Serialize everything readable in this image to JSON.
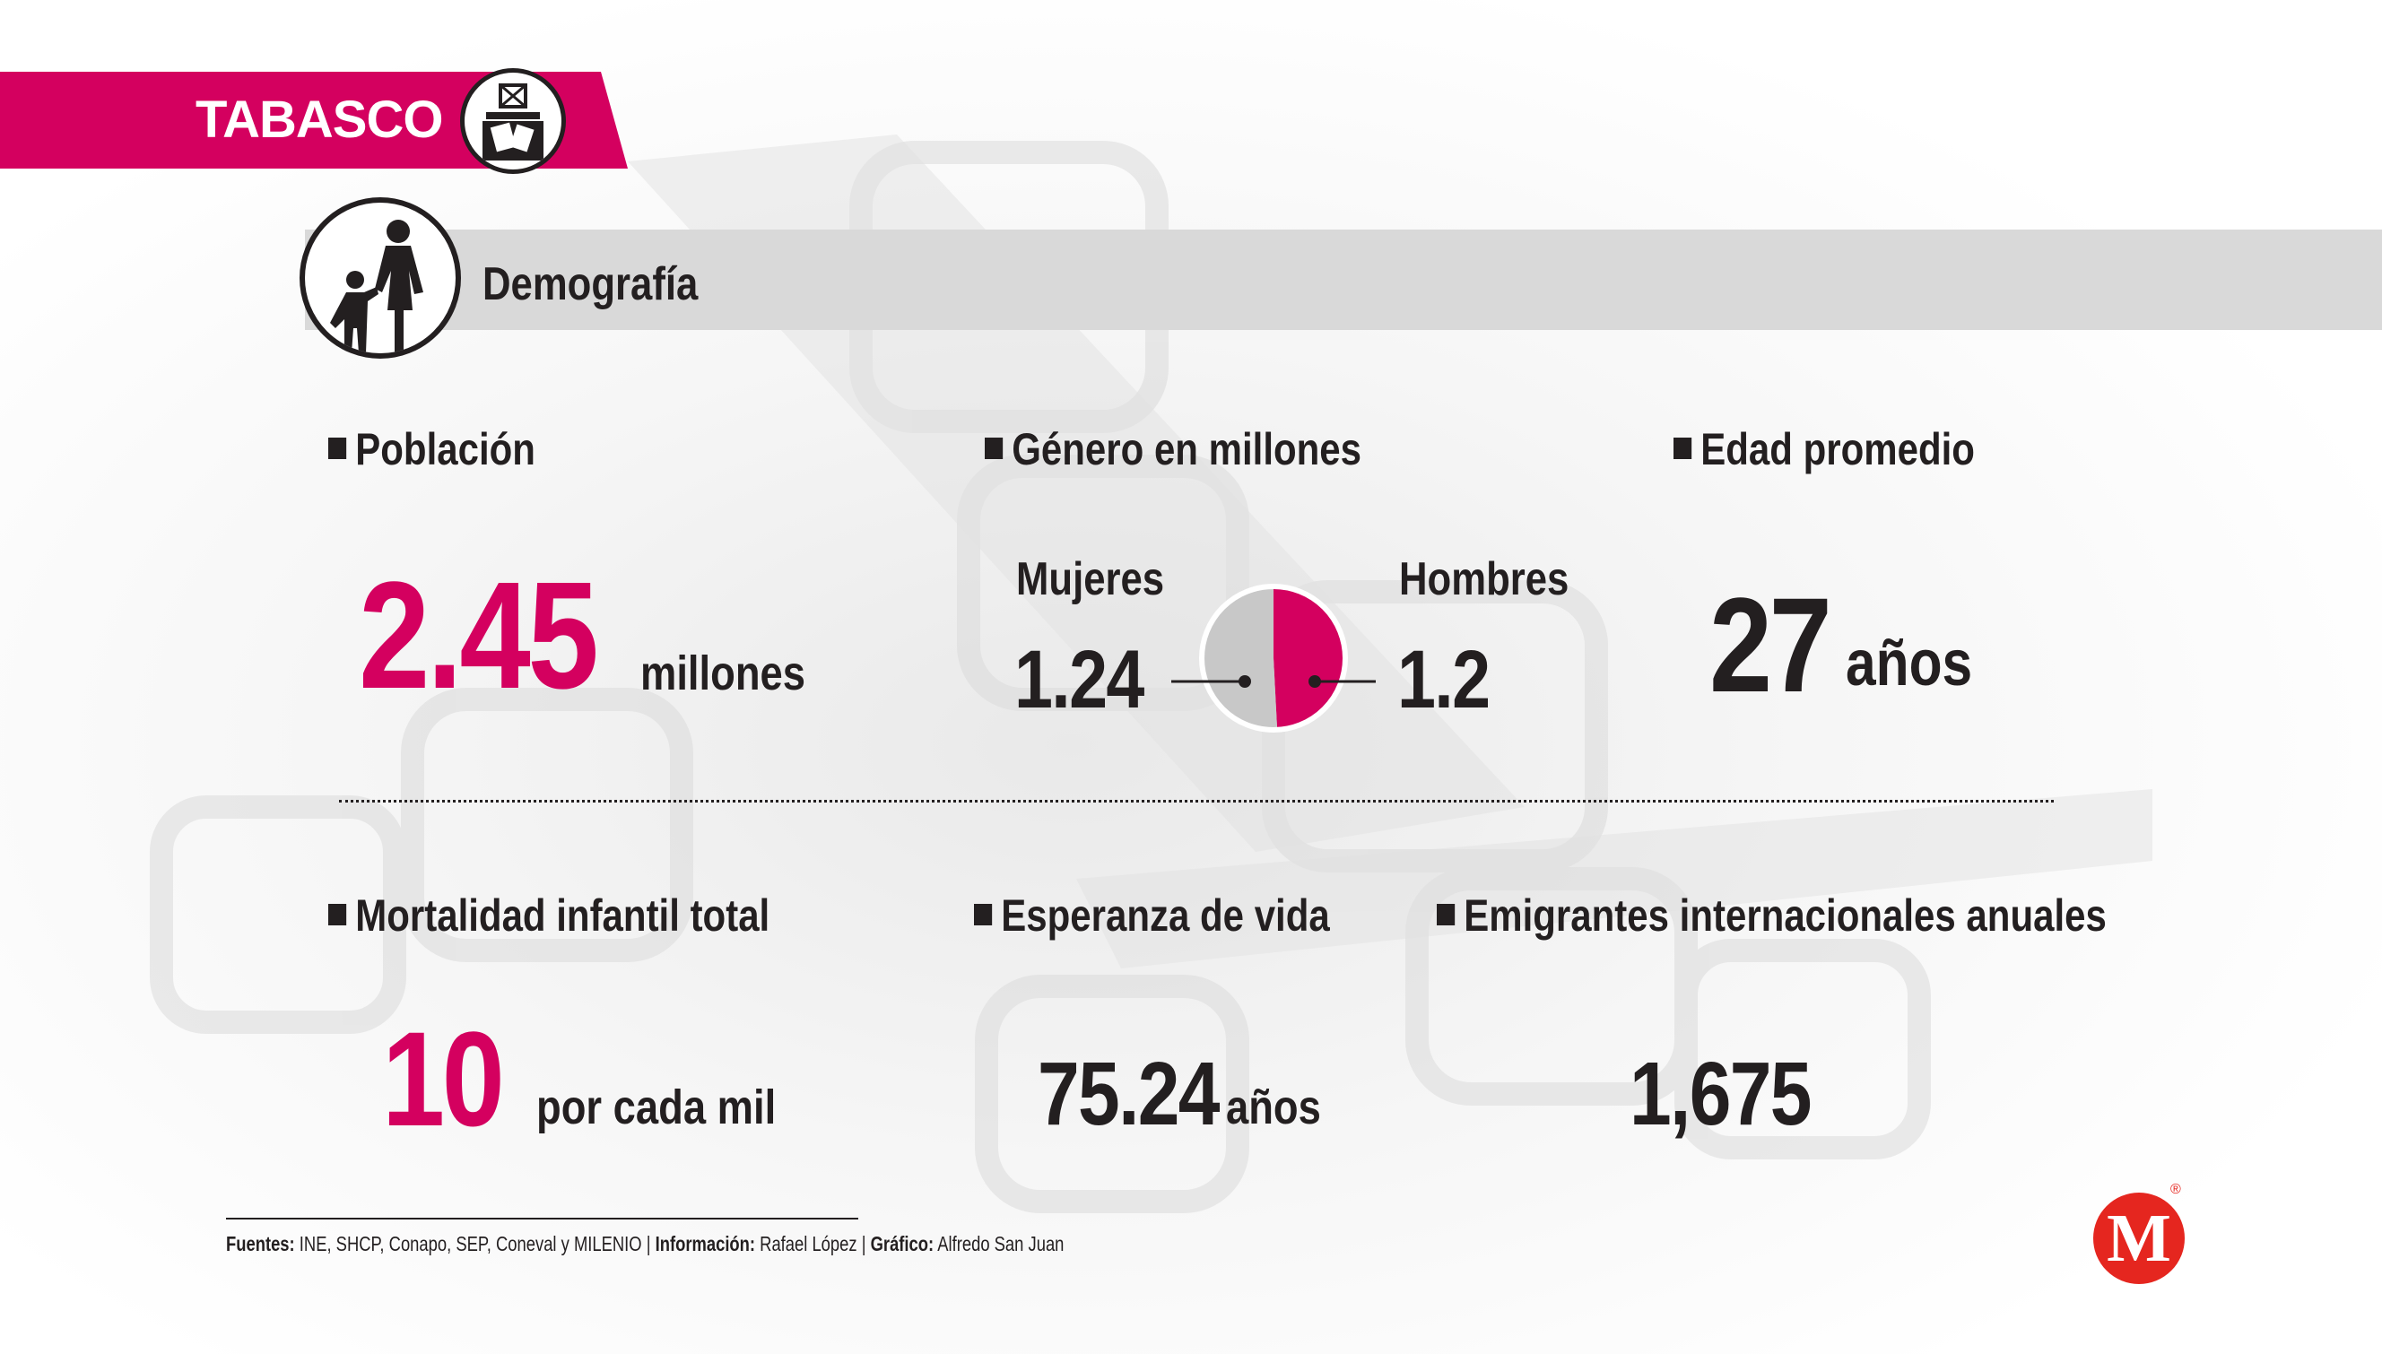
{
  "header": {
    "state": "TABASCO",
    "ballot_icon": "ballot-box-icon",
    "section_title": "Demografía",
    "section_icon": "mother-child-icon"
  },
  "colors": {
    "accent": "#d4005f",
    "dark": "#231f20",
    "bar": "#d9d9d9",
    "logo": "#e5261f"
  },
  "poblacion": {
    "label": "Población",
    "value": "2.45",
    "unit": "millones"
  },
  "genero": {
    "label": "Género en millones",
    "women_label": "Mujeres",
    "women_value": "1.24",
    "men_label": "Hombres",
    "men_value": "1.2"
  },
  "edad": {
    "label": "Edad promedio",
    "value": "27",
    "unit": "años"
  },
  "mortalidad": {
    "label": "Mortalidad infantil total",
    "value": "10",
    "unit": "por cada mil"
  },
  "esperanza": {
    "label": "Esperanza de vida",
    "value": "75.24",
    "unit": "años"
  },
  "emigrantes": {
    "label": "Emigrantes internacionales anuales",
    "value": "1,675"
  },
  "footer": {
    "fuentes_label": "Fuentes:",
    "fuentes_text": "INE, SHCP, Conapo, SEP, Coneval y MILENIO",
    "sep": "|",
    "informacion_label": "Información:",
    "informacion_text": "Rafael López",
    "grafico_label": "Gráfico:",
    "grafico_text": "Alfredo San Juan"
  },
  "logo": {
    "letter": "M",
    "registered": "®"
  },
  "chart_data": {
    "type": "pie",
    "categories": [
      "Mujeres",
      "Hombres"
    ],
    "values": [
      1.24,
      1.2
    ],
    "colors": [
      "#c8c8c8",
      "#d4005f"
    ]
  }
}
